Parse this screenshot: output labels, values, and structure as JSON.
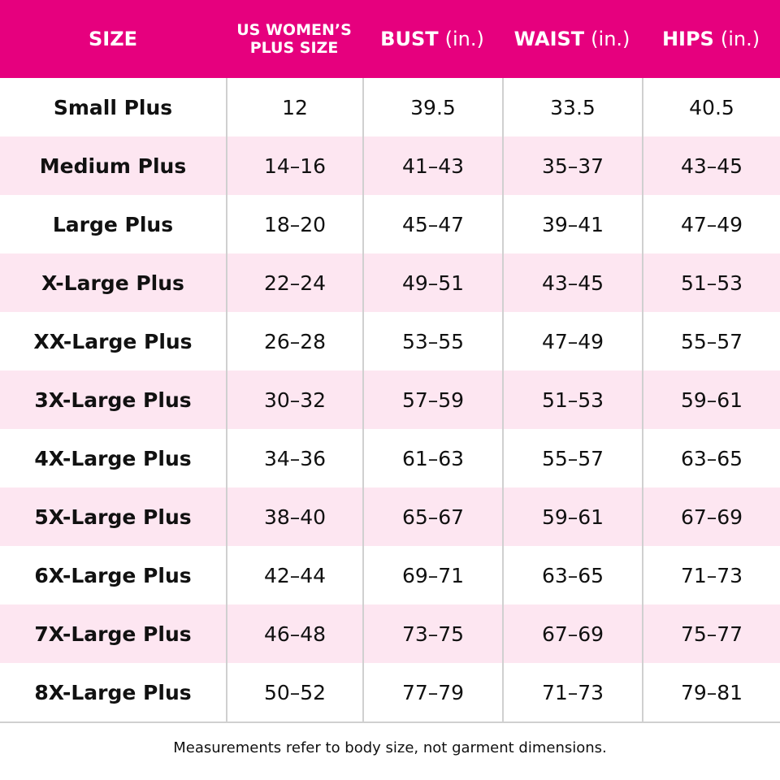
{
  "table": {
    "header": [
      {
        "label": "SIZE"
      },
      {
        "lines": [
          "US WOMEN’S",
          "PLUS SIZE"
        ]
      },
      {
        "label": "BUST",
        "unit": "(in.)"
      },
      {
        "label": "WAIST",
        "unit": "(in.)"
      },
      {
        "label": "HIPS",
        "unit": "(in.)"
      }
    ],
    "rows": [
      [
        "Small Plus",
        "12",
        "39.5",
        "33.5",
        "40.5"
      ],
      [
        "Medium Plus",
        "14–16",
        "41–43",
        "35–37",
        "43–45"
      ],
      [
        "Large Plus",
        "18–20",
        "45–47",
        "39–41",
        "47–49"
      ],
      [
        "X-Large Plus",
        "22–24",
        "49–51",
        "43–45",
        "51–53"
      ],
      [
        "XX-Large Plus",
        "26–28",
        "53–55",
        "47–49",
        "55–57"
      ],
      [
        "3X-Large Plus",
        "30–32",
        "57–59",
        "51–53",
        "59–61"
      ],
      [
        "4X-Large Plus",
        "34–36",
        "61–63",
        "55–57",
        "63–65"
      ],
      [
        "5X-Large Plus",
        "38–40",
        "65–67",
        "59–61",
        "67–69"
      ],
      [
        "6X-Large Plus",
        "42–44",
        "69–71",
        "63–65",
        "71–73"
      ],
      [
        "7X-Large Plus",
        "46–48",
        "73–75",
        "67–69",
        "75–77"
      ],
      [
        "8X-Large Plus",
        "50–52",
        "77–79",
        "71–73",
        "79–81"
      ]
    ]
  },
  "footnote": "Measurements refer to body size, not garment dimensions."
}
